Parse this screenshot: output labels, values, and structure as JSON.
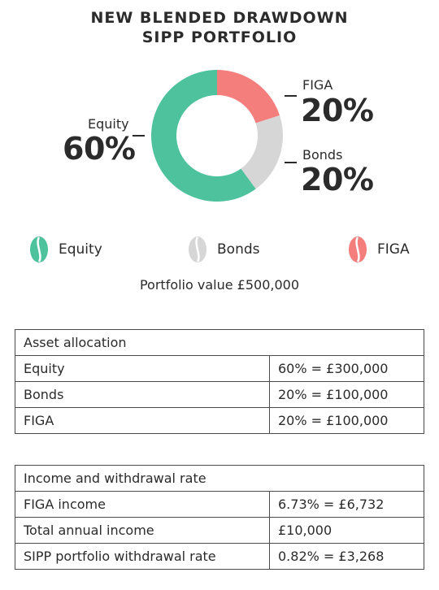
{
  "title": {
    "line1": "NEW BLENDED DRAWDOWN",
    "line2": "SIPP PORTFOLIO"
  },
  "colors": {
    "equity": "#4dc29c",
    "bonds": "#d6d6d6",
    "figa": "#f47e7c"
  },
  "chart_data": {
    "type": "pie",
    "title": "NEW BLENDED DRAWDOWN SIPP PORTFOLIO",
    "categories": [
      "Equity",
      "Bonds",
      "FIGA"
    ],
    "values": [
      60,
      20,
      20
    ],
    "labels": {
      "equity": {
        "name": "Equity",
        "pct": "60%"
      },
      "figa": {
        "name": "FIGA",
        "pct": "20%"
      },
      "bonds": {
        "name": "Bonds",
        "pct": "20%"
      }
    }
  },
  "legend": [
    {
      "label": "Equity",
      "icon": "bean-icon"
    },
    {
      "label": "Bonds",
      "icon": "bean-icon"
    },
    {
      "label": "FIGA",
      "icon": "bean-icon"
    }
  ],
  "portfolio_value": "Portfolio value £500,000",
  "allocation_table": {
    "header": "Asset allocation",
    "rows": [
      {
        "label": "Equity",
        "value": "60% = £300,000"
      },
      {
        "label": "Bonds",
        "value": "20% = £100,000"
      },
      {
        "label": "FIGA",
        "value": "20% = £100,000"
      }
    ]
  },
  "income_table": {
    "header": "Income and withdrawal rate",
    "rows": [
      {
        "label": "FIGA income",
        "value": "6.73% = £6,732"
      },
      {
        "label": "Total annual income",
        "value": "£10,000"
      },
      {
        "label": "SIPP portfolio withdrawal rate",
        "value": "0.82% = £3,268"
      }
    ]
  }
}
